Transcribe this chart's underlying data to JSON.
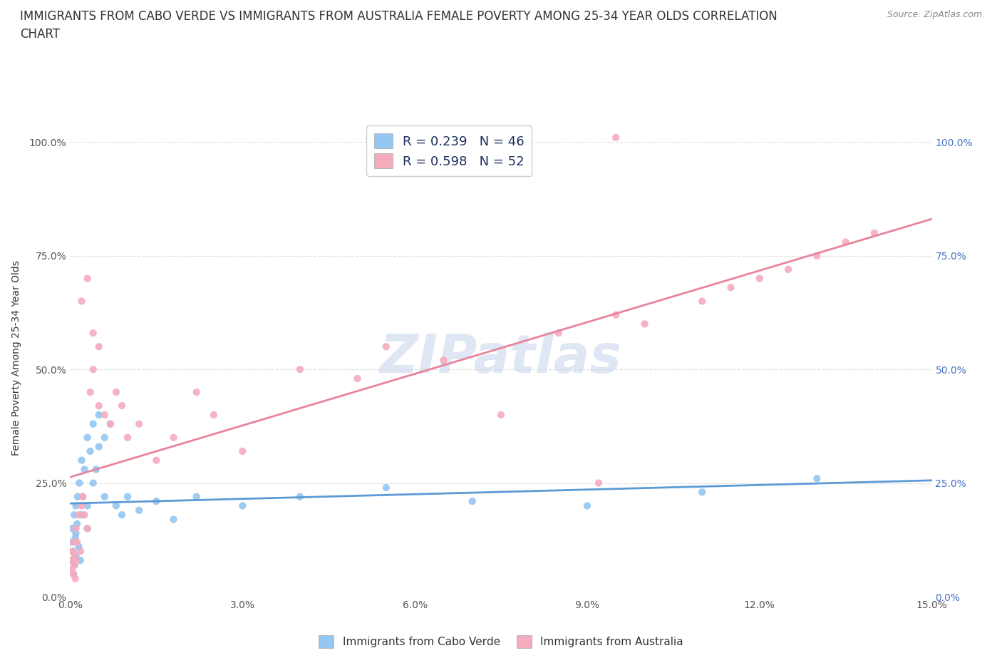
{
  "title_line1": "IMMIGRANTS FROM CABO VERDE VS IMMIGRANTS FROM AUSTRALIA FEMALE POVERTY AMONG 25-34 YEAR OLDS CORRELATION",
  "title_line2": "CHART",
  "source": "Source: ZipAtlas.com",
  "ylabel": "Female Poverty Among 25-34 Year Olds",
  "xlim": [
    0.0,
    0.15
  ],
  "ylim": [
    0.0,
    1.05
  ],
  "yticks": [
    0.0,
    0.25,
    0.5,
    0.75,
    1.0
  ],
  "ytick_labels": [
    "0.0%",
    "25.0%",
    "50.0%",
    "75.0%",
    "100.0%"
  ],
  "xticks": [
    0.0,
    0.03,
    0.06,
    0.09,
    0.12,
    0.15
  ],
  "xtick_labels": [
    "0.0%",
    "3.0%",
    "6.0%",
    "9.0%",
    "12.0%",
    "15.0%"
  ],
  "color_cabo": "#93C6F0",
  "color_australia": "#F5ABBE",
  "line_color_cabo": "#5B9BD5",
  "line_color_australia": "#E8849A",
  "R_cabo": 0.239,
  "N_cabo": 46,
  "R_australia": 0.598,
  "N_australia": 52,
  "legend_label_cabo": "Immigrants from Cabo Verde",
  "legend_label_australia": "Immigrants from Australia",
  "watermark": "ZIPatlas",
  "background_color": "#FFFFFF",
  "grid_color": "#DDDDDD",
  "right_ytick_color": "#4472C4",
  "title_fontsize": 12,
  "axis_label_fontsize": 10,
  "tick_fontsize": 10,
  "legend_fontsize": 13,
  "cabo_x": [
    0.0002,
    0.0003,
    0.0004,
    0.0005,
    0.0006,
    0.0007,
    0.0008,
    0.0009,
    0.001,
    0.001,
    0.001,
    0.0012,
    0.0013,
    0.0015,
    0.0016,
    0.0018,
    0.002,
    0.002,
    0.0022,
    0.0025,
    0.003,
    0.003,
    0.003,
    0.0035,
    0.004,
    0.004,
    0.0045,
    0.005,
    0.005,
    0.006,
    0.006,
    0.007,
    0.008,
    0.009,
    0.01,
    0.012,
    0.015,
    0.018,
    0.022,
    0.03,
    0.04,
    0.055,
    0.07,
    0.09,
    0.11,
    0.13
  ],
  "cabo_y": [
    0.12,
    0.08,
    0.15,
    0.1,
    0.05,
    0.18,
    0.07,
    0.13,
    0.2,
    0.14,
    0.09,
    0.16,
    0.22,
    0.11,
    0.25,
    0.08,
    0.18,
    0.3,
    0.22,
    0.28,
    0.35,
    0.2,
    0.15,
    0.32,
    0.25,
    0.38,
    0.28,
    0.33,
    0.4,
    0.35,
    0.22,
    0.38,
    0.2,
    0.18,
    0.22,
    0.19,
    0.21,
    0.17,
    0.22,
    0.2,
    0.22,
    0.24,
    0.21,
    0.2,
    0.23,
    0.26
  ],
  "aus_x": [
    0.0002,
    0.0003,
    0.0004,
    0.0005,
    0.0006,
    0.0007,
    0.0008,
    0.0009,
    0.001,
    0.001,
    0.0012,
    0.0015,
    0.0018,
    0.002,
    0.002,
    0.0022,
    0.0025,
    0.003,
    0.003,
    0.0035,
    0.004,
    0.004,
    0.005,
    0.005,
    0.006,
    0.007,
    0.008,
    0.009,
    0.01,
    0.012,
    0.015,
    0.018,
    0.022,
    0.025,
    0.03,
    0.04,
    0.05,
    0.055,
    0.065,
    0.075,
    0.085,
    0.092,
    0.095,
    0.1,
    0.11,
    0.115,
    0.12,
    0.125,
    0.13,
    0.135,
    0.14,
    0.095
  ],
  "aus_y": [
    0.08,
    0.06,
    0.1,
    0.05,
    0.12,
    0.07,
    0.09,
    0.04,
    0.15,
    0.08,
    0.12,
    0.18,
    0.1,
    0.65,
    0.2,
    0.22,
    0.18,
    0.7,
    0.15,
    0.45,
    0.5,
    0.58,
    0.42,
    0.55,
    0.4,
    0.38,
    0.45,
    0.42,
    0.35,
    0.38,
    0.3,
    0.35,
    0.45,
    0.4,
    0.32,
    0.5,
    0.48,
    0.55,
    0.52,
    0.4,
    0.58,
    0.25,
    0.62,
    0.6,
    0.65,
    0.68,
    0.7,
    0.72,
    0.75,
    0.78,
    0.8,
    1.01
  ]
}
